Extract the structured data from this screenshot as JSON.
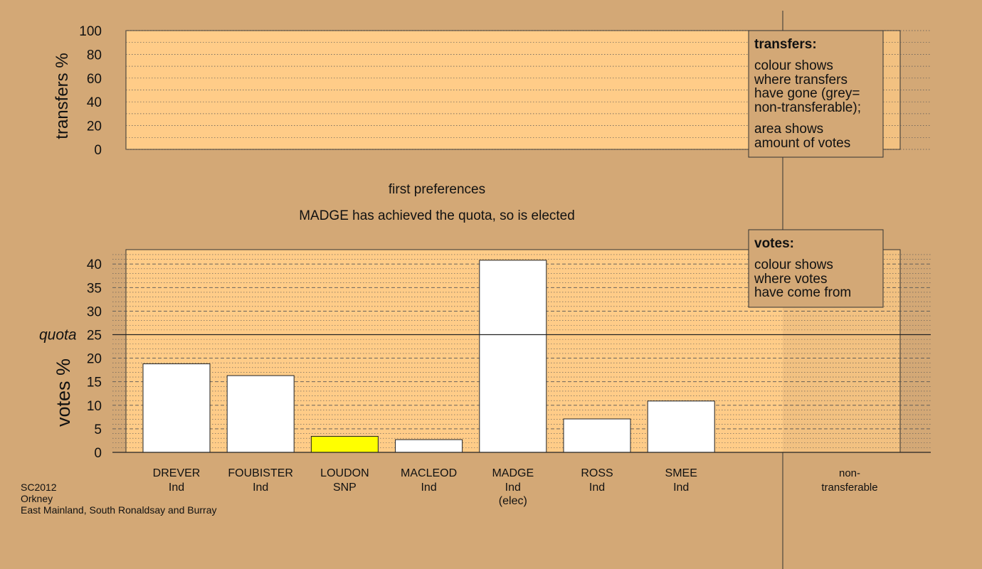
{
  "colors": {
    "background": "#d3a876",
    "plot_area": "#ffcc88",
    "info_box": "#d3a876",
    "bar_default": "#ffffff",
    "bar_snp": "#ffff00",
    "non_transferable": "#c0c0c0"
  },
  "transfers_panel": {
    "ylabel": "transfers %",
    "ylim": [
      0,
      100
    ],
    "ticks": [
      0,
      20,
      40,
      60,
      80,
      100
    ],
    "legend": {
      "title": "transfers:",
      "paragraph1": [
        "colour shows",
        "where transfers",
        "have gone (grey=",
        "non-transferable);"
      ],
      "paragraph2": [
        "area shows",
        "amount of votes"
      ]
    }
  },
  "stage_title": "first preferences",
  "status_message": "MADGE has achieved the quota, so is elected",
  "votes_legend": {
    "title": "votes:",
    "paragraph1": [
      "colour shows",
      "where votes",
      "have come from"
    ]
  },
  "quota_label": "quota",
  "chart_data": {
    "type": "bar",
    "ylabel": "votes %",
    "ylim": [
      0,
      42
    ],
    "yticks": [
      0,
      5,
      10,
      15,
      20,
      25,
      30,
      35,
      40
    ],
    "quota": 25,
    "grid": true,
    "categories": [
      {
        "name": "DREVER",
        "party": "Ind",
        "note": "",
        "value": 18.8,
        "color": "#ffffff"
      },
      {
        "name": "FOUBISTER",
        "party": "Ind",
        "note": "",
        "value": 16.3,
        "color": "#ffffff"
      },
      {
        "name": "LOUDON",
        "party": "SNP",
        "note": "",
        "value": 3.4,
        "color": "#ffff00"
      },
      {
        "name": "MACLEOD",
        "party": "Ind",
        "note": "",
        "value": 2.7,
        "color": "#ffffff"
      },
      {
        "name": "MADGE",
        "party": "Ind",
        "note": "(elec)",
        "value": 40.8,
        "color": "#ffffff"
      },
      {
        "name": "ROSS",
        "party": "Ind",
        "note": "",
        "value": 7.1,
        "color": "#ffffff"
      },
      {
        "name": "SMEE",
        "party": "Ind",
        "note": "",
        "value": 10.9,
        "color": "#ffffff"
      }
    ],
    "non_transferable": {
      "label1": "non-",
      "label2": "transferable",
      "value": 0
    }
  },
  "footer": {
    "line1": "SC2012",
    "line2": "Orkney",
    "line3": "East Mainland, South Ronaldsay and Burray"
  }
}
